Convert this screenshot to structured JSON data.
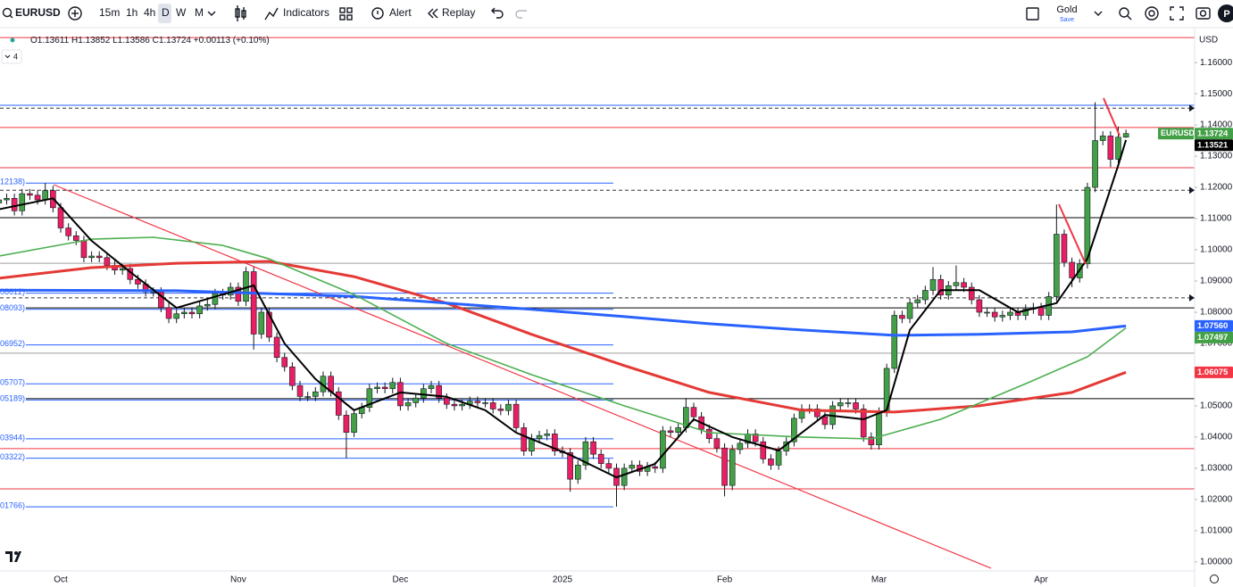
{
  "toolbar": {
    "symbol": "EURUSD",
    "intervals": [
      "15m",
      "1h",
      "4h",
      "D",
      "W",
      "M"
    ],
    "indicators": "Indicators",
    "alert": "Alert",
    "replay": "Replay",
    "account": "Gold",
    "save": "Save",
    "avatar": "P"
  },
  "legend": {
    "open": "O1.13611",
    "high": "H1.13852",
    "low": "L1.13586",
    "close": "C1.13724",
    "change": "+0.00113 (+0.10%)",
    "collapsed": "4"
  },
  "chart_data": {
    "type": "candlestick",
    "currency": "USD",
    "up_color": "#43a047",
    "down_color": "#e91e63",
    "categories": [
      null,
      null,
      null,
      null,
      null,
      null,
      null,
      null,
      "Oct",
      null,
      null,
      null,
      null,
      null,
      null,
      null,
      null,
      null,
      null,
      null,
      null,
      null,
      null,
      null,
      null,
      null,
      null,
      null,
      null,
      null,
      null,
      "Nov",
      null,
      null,
      null,
      null,
      null,
      null,
      null,
      null,
      null,
      null,
      null,
      null,
      null,
      null,
      null,
      null,
      null,
      null,
      null,
      null,
      "Dec",
      null,
      null,
      null,
      null,
      null,
      null,
      null,
      null,
      null,
      null,
      null,
      null,
      null,
      null,
      null,
      null,
      null,
      null,
      null,
      null,
      "2025",
      null,
      null,
      null,
      null,
      null,
      null,
      null,
      null,
      null,
      null,
      null,
      null,
      null,
      null,
      null,
      null,
      null,
      null,
      null,
      null,
      "Feb",
      null,
      null,
      null,
      null,
      null,
      null,
      null,
      null,
      null,
      null,
      null,
      null,
      null,
      null,
      null,
      null,
      null,
      null,
      null,
      "Mar",
      null,
      null,
      null,
      null,
      null,
      null,
      null,
      null,
      null,
      null,
      null,
      null,
      null,
      null,
      null,
      null,
      null,
      null,
      null,
      null,
      "Apr",
      null,
      null,
      null,
      null,
      null,
      null,
      null,
      null,
      null,
      null,
      null
    ],
    "open": [
      1.115,
      1.116,
      1.1165,
      1.1125,
      1.118,
      1.1175,
      1.116,
      1.119,
      1.1135,
      1.107,
      1.1045,
      1.103,
      1.0975,
      1.098,
      1.0975,
      1.095,
      1.0935,
      1.094,
      1.0905,
      1.089,
      1.0865,
      1.0865,
      1.0815,
      1.078,
      1.0795,
      1.08,
      1.0795,
      1.082,
      1.0825,
      1.086,
      1.0855,
      1.088,
      1.0835,
      1.093,
      1.073,
      1.08,
      1.072,
      1.0655,
      1.0625,
      1.0565,
      1.053,
      1.053,
      1.0545,
      1.0595,
      1.0545,
      1.047,
      1.0415,
      1.0475,
      1.0495,
      1.0555,
      1.056,
      1.0555,
      1.0575,
      1.05,
      1.051,
      1.0525,
      1.0555,
      1.0565,
      1.0525,
      1.0505,
      1.05,
      1.0505,
      1.0515,
      1.051,
      1.051,
      1.049,
      1.0485,
      1.0505,
      1.043,
      1.0355,
      1.0395,
      1.0405,
      1.041,
      1.0355,
      1.035,
      1.0265,
      1.031,
      1.0385,
      1.0345,
      1.0315,
      1.03,
      1.0245,
      1.03,
      1.031,
      1.029,
      1.0305,
      1.03,
      1.042,
      1.0415,
      1.043,
      1.0495,
      1.0465,
      1.0425,
      1.0395,
      1.0365,
      1.0245,
      1.036,
      1.038,
      1.041,
      1.0385,
      1.033,
      1.031,
      1.0355,
      1.0385,
      1.046,
      1.049,
      1.049,
      1.0465,
      1.044,
      1.05,
      1.051,
      1.051,
      1.049,
      1.04,
      1.0375,
      1.048,
      1.062,
      1.079,
      1.078,
      1.083,
      1.084,
      1.087,
      1.0905,
      1.0855,
      1.0885,
      1.0895,
      1.088,
      1.084,
      1.08,
      1.08,
      1.0785,
      1.079,
      1.08,
      1.079,
      1.081,
      1.0815,
      1.079,
      1.085,
      1.105,
      1.096,
      1.091,
      1.0955,
      1.12,
      1.135,
      1.1365,
      1.129,
      1.1361
    ],
    "high": [
      1.1175,
      1.118,
      1.118,
      1.1195,
      1.1195,
      1.119,
      1.1214,
      1.1205,
      1.115,
      1.1085,
      1.106,
      1.1045,
      1.0995,
      1.0995,
      1.099,
      1.0965,
      1.0955,
      1.0955,
      1.092,
      1.0905,
      1.088,
      1.088,
      1.083,
      1.081,
      1.0815,
      1.0815,
      1.0835,
      1.084,
      1.0875,
      1.0875,
      1.0895,
      1.0895,
      1.0945,
      1.0945,
      1.0815,
      1.0815,
      1.0735,
      1.067,
      1.064,
      1.058,
      1.0545,
      1.056,
      1.061,
      1.061,
      1.056,
      1.0485,
      1.049,
      1.051,
      1.057,
      1.0575,
      1.0575,
      1.059,
      1.059,
      1.0525,
      1.054,
      1.057,
      1.058,
      1.058,
      1.054,
      1.052,
      1.052,
      1.053,
      1.053,
      1.0525,
      1.0525,
      1.0505,
      1.052,
      1.052,
      1.0445,
      1.041,
      1.042,
      1.0425,
      1.0425,
      1.037,
      1.0365,
      1.0325,
      1.04,
      1.04,
      1.036,
      1.033,
      1.0315,
      1.0315,
      1.0325,
      1.0325,
      1.032,
      1.032,
      1.0435,
      1.0435,
      1.0445,
      1.0525,
      1.051,
      1.048,
      1.044,
      1.041,
      1.038,
      1.0375,
      1.0395,
      1.0425,
      1.0425,
      1.04,
      1.0345,
      1.037,
      1.04,
      1.0475,
      1.0505,
      1.0505,
      1.0505,
      1.048,
      1.0515,
      1.0525,
      1.0525,
      1.0525,
      1.0505,
      1.0415,
      1.0495,
      1.0635,
      1.0805,
      1.0805,
      1.0845,
      1.0855,
      1.0885,
      1.0945,
      1.092,
      1.09,
      1.095,
      1.091,
      1.0895,
      1.0855,
      1.0815,
      1.0815,
      1.0805,
      1.0815,
      1.0815,
      1.0825,
      1.083,
      1.083,
      1.0865,
      1.1145,
      1.1065,
      1.0975,
      1.097,
      1.1215,
      1.1473,
      1.138,
      1.138,
      1.1395,
      1.13852
    ],
    "low": [
      1.1135,
      1.1145,
      1.111,
      1.111,
      1.116,
      1.1145,
      1.1145,
      1.112,
      1.1055,
      1.103,
      1.1015,
      1.096,
      1.096,
      1.096,
      1.0935,
      1.092,
      1.092,
      1.089,
      1.0875,
      1.085,
      1.085,
      1.08,
      1.0765,
      1.0765,
      1.078,
      1.078,
      1.078,
      1.0805,
      1.081,
      1.084,
      1.084,
      1.082,
      1.082,
      1.068,
      1.0715,
      1.0705,
      1.064,
      1.061,
      1.055,
      1.0515,
      1.0515,
      1.0515,
      1.053,
      1.053,
      1.0455,
      1.0332,
      1.04,
      1.046,
      1.048,
      1.054,
      1.054,
      1.054,
      1.0485,
      1.0485,
      1.0495,
      1.051,
      1.054,
      1.051,
      1.049,
      1.0485,
      1.0485,
      1.049,
      1.0495,
      1.0495,
      1.0475,
      1.047,
      1.047,
      1.0415,
      1.034,
      1.034,
      1.038,
      1.039,
      1.034,
      1.0335,
      1.0225,
      1.025,
      1.0295,
      1.033,
      1.03,
      1.0285,
      1.0177,
      1.023,
      1.0285,
      1.0275,
      1.0275,
      1.0285,
      1.0285,
      1.04,
      1.04,
      1.0415,
      1.045,
      1.041,
      1.038,
      1.035,
      1.021,
      1.023,
      1.0345,
      1.0365,
      1.037,
      1.0315,
      1.0295,
      1.0295,
      1.034,
      1.037,
      1.0445,
      1.0475,
      1.045,
      1.0425,
      1.0425,
      1.0485,
      1.0495,
      1.0475,
      1.0385,
      1.036,
      1.036,
      1.0465,
      1.0605,
      1.0765,
      1.0765,
      1.0815,
      1.0825,
      1.0855,
      1.084,
      1.084,
      1.087,
      1.0865,
      1.0825,
      1.0785,
      1.0785,
      1.077,
      1.077,
      1.0775,
      1.0775,
      1.0775,
      1.0795,
      1.0775,
      1.0775,
      1.0835,
      1.0945,
      1.088,
      1.0895,
      1.094,
      1.1185,
      1.1335,
      1.1265,
      1.1275,
      1.13586
    ],
    "close": [
      1.116,
      1.1165,
      1.1125,
      1.118,
      1.1175,
      1.116,
      1.119,
      1.1135,
      1.107,
      1.1045,
      1.103,
      1.0975,
      1.098,
      1.0975,
      1.095,
      1.0935,
      1.094,
      1.0905,
      1.089,
      1.0865,
      1.0865,
      1.0815,
      1.078,
      1.0795,
      1.08,
      1.0795,
      1.082,
      1.0825,
      1.086,
      1.0855,
      1.088,
      1.0835,
      1.093,
      1.073,
      1.08,
      1.072,
      1.0655,
      1.0625,
      1.0565,
      1.053,
      1.053,
      1.0545,
      1.0595,
      1.0545,
      1.047,
      1.0415,
      1.0475,
      1.0495,
      1.0555,
      1.056,
      1.0555,
      1.0575,
      1.05,
      1.051,
      1.0525,
      1.0555,
      1.0565,
      1.0525,
      1.0505,
      1.05,
      1.0505,
      1.0515,
      1.051,
      1.051,
      1.049,
      1.0485,
      1.0505,
      1.043,
      1.0355,
      1.0395,
      1.0405,
      1.041,
      1.0355,
      1.035,
      1.0265,
      1.031,
      1.0385,
      1.0345,
      1.0315,
      1.03,
      1.0245,
      1.03,
      1.031,
      1.029,
      1.0305,
      1.03,
      1.042,
      1.0415,
      1.043,
      1.0495,
      1.0465,
      1.0425,
      1.0395,
      1.0365,
      1.0245,
      1.036,
      1.038,
      1.041,
      1.0385,
      1.033,
      1.031,
      1.0355,
      1.0385,
      1.046,
      1.049,
      1.049,
      1.0465,
      1.044,
      1.05,
      1.051,
      1.051,
      1.049,
      1.04,
      1.0375,
      1.048,
      1.062,
      1.079,
      1.078,
      1.083,
      1.084,
      1.087,
      1.0905,
      1.0855,
      1.0885,
      1.0895,
      1.088,
      1.084,
      1.08,
      1.08,
      1.0785,
      1.079,
      1.08,
      1.079,
      1.081,
      1.0815,
      1.079,
      1.085,
      1.105,
      1.096,
      1.091,
      1.0955,
      1.12,
      1.135,
      1.1365,
      1.129,
      1.1361,
      1.13724
    ],
    "lines": [
      {
        "color": "#e53935",
        "width": 3,
        "x": [
          0,
          12,
          23,
          35,
          46,
          58,
          69,
          81,
          92,
          104,
          116,
          127,
          139,
          146
        ],
        "values": [
          1.0909,
          1.0943,
          1.0957,
          1.0963,
          1.0914,
          1.0829,
          1.0729,
          1.0629,
          1.0543,
          1.0486,
          1.048,
          1.05,
          1.0543,
          1.06075
        ]
      },
      {
        "color": "#2962ff",
        "width": 3,
        "x": [
          0,
          23,
          46,
          58,
          69,
          81,
          92,
          104,
          116,
          127,
          139,
          146
        ],
        "values": [
          1.0871,
          1.0869,
          1.0851,
          1.0829,
          1.0809,
          1.0786,
          1.0763,
          1.0743,
          1.0726,
          1.0729,
          1.0737,
          1.0756
        ]
      },
      {
        "color": "#4caf50",
        "width": 1.6,
        "x": [
          0,
          12,
          20,
          29,
          35,
          46,
          58,
          69,
          81,
          92,
          104,
          113,
          122,
          133,
          141,
          146
        ],
        "values": [
          1.098,
          1.1034,
          1.104,
          1.1014,
          1.0971,
          1.0857,
          1.07,
          1.06,
          1.05,
          1.0414,
          1.04,
          1.0394,
          1.0457,
          1.0571,
          1.0657,
          1.07497
        ]
      },
      {
        "color": "#000000",
        "width": 2,
        "x": [
          0,
          7,
          12,
          17,
          23,
          29,
          33,
          37,
          41,
          46,
          52,
          58,
          63,
          67,
          74,
          80,
          85,
          90,
          95,
          101,
          107,
          112,
          115,
          118,
          122,
          127,
          132,
          137,
          141,
          145,
          146
        ],
        "values": [
          1.113,
          1.1165,
          1.1029,
          1.0929,
          1.0814,
          1.0857,
          1.0886,
          1.07,
          1.0586,
          1.0486,
          1.0543,
          1.0529,
          1.0486,
          1.0414,
          1.0343,
          1.0271,
          1.0314,
          1.0457,
          1.04,
          1.0357,
          1.0471,
          1.0457,
          1.0486,
          1.0743,
          1.0871,
          1.0871,
          1.08,
          1.0829,
          1.0971,
          1.1271,
          1.13521
        ]
      }
    ],
    "levels": [
      {
        "value": 1.168,
        "color": "#f23645"
      },
      {
        "value": 1.1463,
        "color": "#2962ff"
      },
      {
        "value": 1.1454,
        "color": "#333333",
        "style": "dashed"
      },
      {
        "value": 1.1392,
        "color": "#f23645"
      },
      {
        "value": 1.1263,
        "color": "#f23645"
      },
      {
        "value": 1.12138,
        "color": "#2962ff",
        "label": "12138)"
      },
      {
        "value": 1.1191,
        "color": "#333333",
        "style": "dashed"
      },
      {
        "value": 1.1103,
        "color": "#000000"
      },
      {
        "value": 1.0957,
        "color": "#9e9e9e"
      },
      {
        "value": 1.08612,
        "color": "#2962ff",
        "label": "08612)"
      },
      {
        "value": 1.0846,
        "color": "#333333",
        "style": "dashed"
      },
      {
        "value": 1.0814,
        "color": "#000000"
      },
      {
        "value": 1.08093,
        "color": "#2962ff",
        "label": "08093)"
      },
      {
        "value": 1.06952,
        "color": "#2962ff",
        "label": "06952)"
      },
      {
        "value": 1.0669,
        "color": "#9e9e9e"
      },
      {
        "value": 1.05707,
        "color": "#2962ff",
        "label": "05707)"
      },
      {
        "value": 1.0523,
        "color": "#000000"
      },
      {
        "value": 1.05189,
        "color": "#2962ff",
        "label": "05189)"
      },
      {
        "value": 1.03944,
        "color": "#2962ff",
        "label": "03944)"
      },
      {
        "value": 1.0363,
        "color": "#f23645"
      },
      {
        "value": 1.03322,
        "color": "#2962ff",
        "label": "03322)"
      },
      {
        "value": 1.0234,
        "color": "#f23645"
      },
      {
        "value": 1.01766,
        "color": "#2962ff",
        "label": "01766)"
      }
    ],
    "price_badges": [
      {
        "value": 1.13724,
        "label": "1.13724",
        "color": "#43a047",
        "symbol": "EURUSD"
      },
      {
        "value": 1.13521,
        "label": "1.13521",
        "color": "#000000"
      },
      {
        "value": 1.0756,
        "label": "1.07560",
        "color": "#2962ff"
      },
      {
        "value": 1.07497,
        "label": "1.07497",
        "color": "#43a047"
      },
      {
        "value": 1.06075,
        "label": "1.06075",
        "color": "#f23645"
      }
    ],
    "ylim": [
      0.9971,
      1.1709
    ],
    "yticks": [
      {
        "value": 1.16,
        "label": "1.16000"
      },
      {
        "value": 1.15,
        "label": "1.15000"
      },
      {
        "value": 1.14,
        "label": "1.14000"
      },
      {
        "value": 1.13,
        "label": "1.13000"
      },
      {
        "value": 1.12,
        "label": "1.12000"
      },
      {
        "value": 1.11,
        "label": "1.11000"
      },
      {
        "value": 1.1,
        "label": "1.10000"
      },
      {
        "value": 1.09,
        "label": "1.09000"
      },
      {
        "value": 1.08,
        "label": "1.08000"
      },
      {
        "value": 1.07,
        "label": "1.07000"
      },
      {
        "value": 1.06,
        "label": "1.06000"
      },
      {
        "value": 1.05,
        "label": "1.05000"
      },
      {
        "value": 1.04,
        "label": "1.04000"
      },
      {
        "value": 1.03,
        "label": "1.03000"
      },
      {
        "value": 1.02,
        "label": "1.02000"
      },
      {
        "value": 1.01,
        "label": "1.01000"
      },
      {
        "value": 1,
        "label": "1.00000"
      }
    ]
  }
}
